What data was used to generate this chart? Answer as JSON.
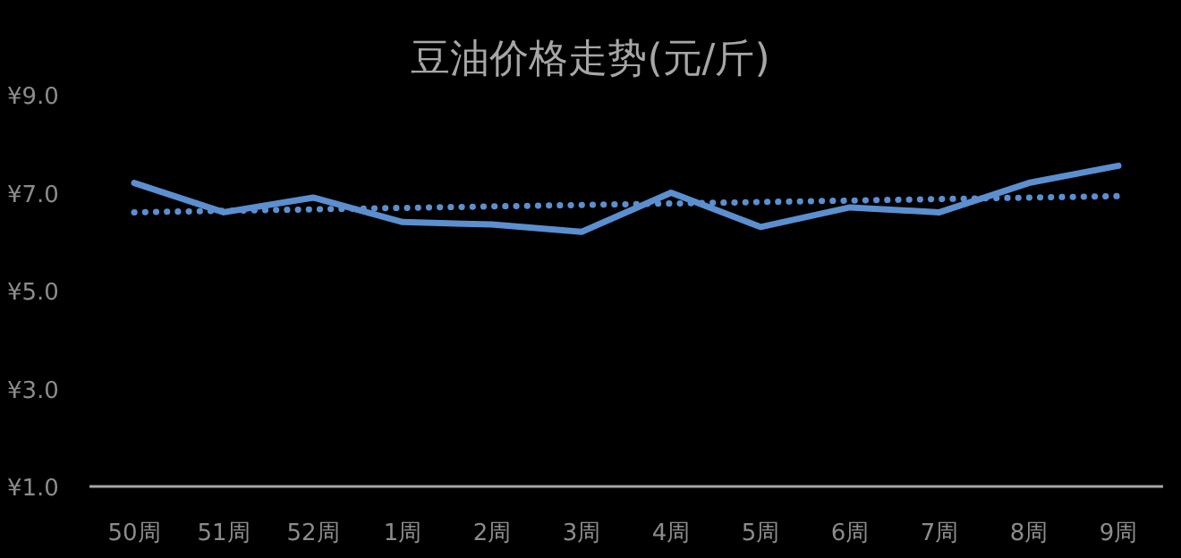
{
  "chart_data": {
    "type": "line",
    "title": "豆油价格走势(元/斤)",
    "categories": [
      "50周",
      "51周",
      "52周",
      "1周",
      "2周",
      "3周",
      "4周",
      "5周",
      "6周",
      "7周",
      "8周",
      "9周"
    ],
    "series": [
      {
        "color": "#5b8fcf",
        "line_style": "solid",
        "values": [
          7.2,
          6.6,
          6.9,
          6.4,
          6.35,
          6.2,
          7.0,
          6.3,
          6.7,
          6.6,
          7.2,
          7.55
        ]
      },
      {
        "color": "#5b8fcf",
        "line_style": "dotted",
        "values": [
          6.6,
          6.63,
          6.66,
          6.69,
          6.72,
          6.75,
          6.78,
          6.81,
          6.84,
          6.87,
          6.9,
          6.93
        ]
      }
    ],
    "ylim": [
      1,
      9
    ],
    "yticks": [
      {
        "value": 1,
        "label": "¥1.0"
      },
      {
        "value": 3,
        "label": "¥3.0"
      },
      {
        "value": 5,
        "label": "¥5.0"
      },
      {
        "value": 7,
        "label": "¥7.0"
      },
      {
        "value": 9,
        "label": "¥9.0"
      }
    ],
    "grid": false,
    "marker": "none"
  }
}
